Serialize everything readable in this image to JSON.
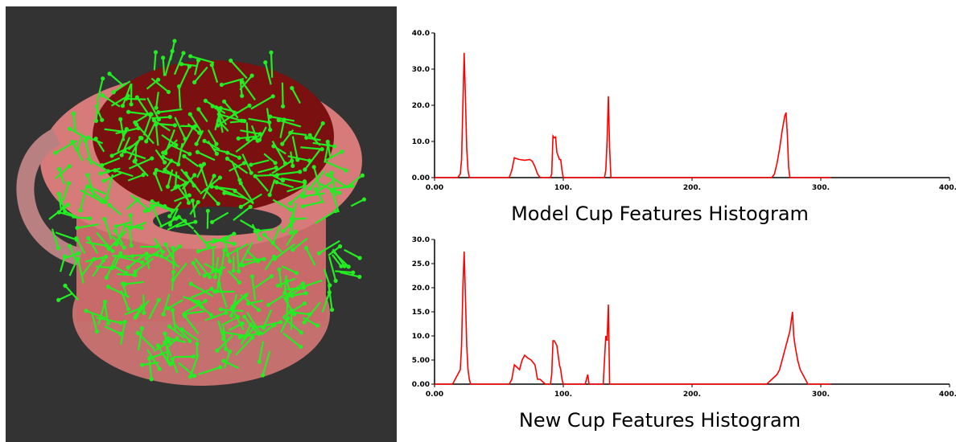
{
  "chart_data": [
    {
      "type": "line",
      "title": "Model Cup Features Histogram",
      "color": "#ff0000",
      "x": [
        0,
        18,
        20,
        21,
        22,
        23,
        24,
        25,
        26,
        27,
        40,
        58,
        60,
        62,
        64,
        66,
        70,
        74,
        76,
        78,
        80,
        82,
        90,
        91,
        92,
        93,
        94,
        95,
        96,
        97,
        98,
        99,
        100,
        132,
        133,
        134,
        135,
        136,
        137,
        262,
        264,
        266,
        268,
        270,
        271,
        272,
        273,
        274,
        275,
        276,
        308
      ],
      "values": [
        0,
        0,
        1,
        5,
        20,
        34.5,
        22,
        8,
        2,
        0,
        0,
        0,
        2,
        5.5,
        5.2,
        5,
        4.8,
        5,
        4.5,
        3,
        1,
        0,
        0,
        1,
        11.5,
        11,
        11.2,
        7,
        6,
        5,
        5,
        2,
        0,
        0,
        2,
        10,
        22.5,
        8,
        0,
        0,
        1,
        4,
        8,
        13,
        15,
        17,
        18,
        12,
        3,
        0,
        0
      ],
      "xlim": [
        0,
        400
      ],
      "ylim": [
        0,
        40
      ],
      "xticks": [
        {
          "value": 0,
          "label": "0.00"
        },
        {
          "value": 100,
          "label": "100."
        },
        {
          "value": 200,
          "label": "200."
        },
        {
          "value": 300,
          "label": "300."
        },
        {
          "value": 400,
          "label": "400."
        }
      ],
      "yticks": [
        {
          "value": 0,
          "label": "0.00"
        },
        {
          "value": 10,
          "label": "10.0"
        },
        {
          "value": 20,
          "label": "20.0"
        },
        {
          "value": 30,
          "label": "30.0"
        },
        {
          "value": 40,
          "label": "40.0"
        }
      ]
    },
    {
      "type": "line",
      "title": "New Cup Features Histogram",
      "color": "#ff0000",
      "x": [
        0,
        14,
        16,
        18,
        20,
        21,
        22,
        23,
        24,
        25,
        26,
        27,
        28,
        40,
        58,
        60,
        62,
        64,
        66,
        68,
        70,
        72,
        75,
        78,
        80,
        82,
        84,
        86,
        90,
        91,
        92,
        93,
        95,
        97,
        98,
        99,
        100,
        117,
        118,
        119,
        120,
        131,
        132,
        133,
        134,
        135,
        136,
        258,
        262,
        266,
        268,
        270,
        272,
        274,
        276,
        277,
        278,
        279,
        280,
        282,
        284,
        286,
        288,
        290,
        308
      ],
      "values": [
        0,
        0,
        1,
        2,
        3,
        8,
        20,
        27.5,
        18,
        8,
        3,
        1,
        0,
        0,
        0,
        1,
        4,
        3.5,
        3,
        5,
        6,
        5.5,
        5,
        4,
        1,
        1,
        0.5,
        0,
        0,
        2,
        9,
        9,
        8,
        4,
        3,
        1,
        0,
        0,
        1,
        2,
        0,
        0,
        5,
        10,
        9,
        16.5,
        0,
        0,
        1,
        2,
        3,
        5,
        7,
        9,
        11,
        13,
        15,
        10,
        8,
        5,
        3,
        2,
        1,
        0,
        0
      ],
      "xlim": [
        0,
        400
      ],
      "ylim": [
        0,
        30
      ],
      "xticks": [
        {
          "value": 0,
          "label": "0.00"
        },
        {
          "value": 100,
          "label": "100."
        },
        {
          "value": 200,
          "label": "200."
        },
        {
          "value": 300,
          "label": "300."
        },
        {
          "value": 400,
          "label": "400."
        }
      ],
      "yticks": [
        {
          "value": 0,
          "label": "0.00"
        },
        {
          "value": 5,
          "label": "5.00"
        },
        {
          "value": 10,
          "label": "10.0"
        },
        {
          "value": 15,
          "label": "15.0"
        },
        {
          "value": 20,
          "label": "20.0"
        },
        {
          "value": 25,
          "label": "25.0"
        },
        {
          "value": 30,
          "label": "30.0"
        }
      ]
    }
  ]
}
